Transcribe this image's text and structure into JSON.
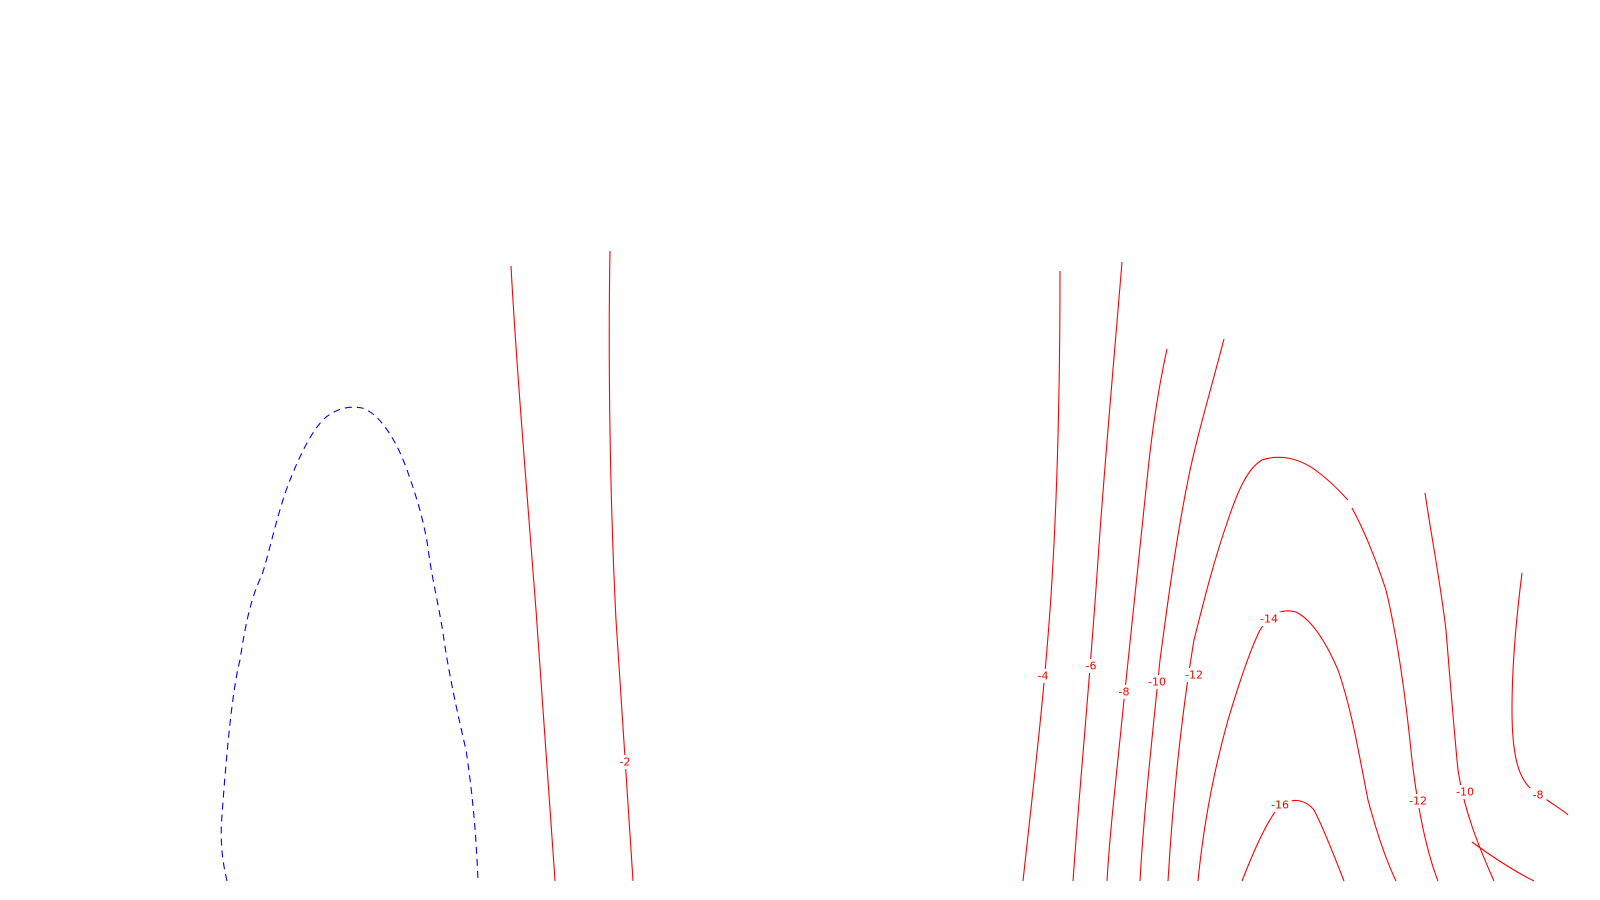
{
  "chart_data": {
    "type": "contour",
    "title": "",
    "xlabel": "",
    "ylabel": "",
    "grid": false,
    "legend": false,
    "colors": {
      "negative": "#ff0000",
      "positive": "#0000ff",
      "background": "#ffffff"
    },
    "contour_levels": [
      {
        "level": 2,
        "label": "",
        "color": "#0000ff",
        "dash": "dashed"
      },
      {
        "level": -2,
        "label": "-2",
        "color": "#ff0000",
        "dash": "solid"
      },
      {
        "level": -4,
        "label": "-4",
        "color": "#ff0000",
        "dash": "solid"
      },
      {
        "level": -6,
        "label": "-6",
        "color": "#ff0000",
        "dash": "solid"
      },
      {
        "level": -8,
        "label": "-8",
        "color": "#ff0000",
        "dash": "solid"
      },
      {
        "level": -10,
        "label": "-10",
        "color": "#ff0000",
        "dash": "solid"
      },
      {
        "level": -12,
        "label": "-12",
        "color": "#ff0000",
        "dash": "solid"
      },
      {
        "level": -14,
        "label": "-14",
        "color": "#ff0000",
        "dash": "solid"
      },
      {
        "level": -16,
        "label": "-16",
        "color": "#ff0000",
        "dash": "solid"
      }
    ]
  }
}
